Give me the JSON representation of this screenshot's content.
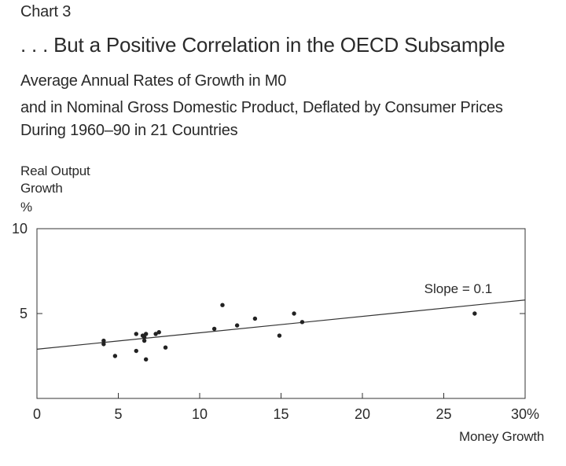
{
  "header": {
    "chart_label": "Chart 3",
    "title": ". . . But a Positive Correlation in the OECD Subsample",
    "subtitle_lines": [
      "Average Annual Rates of Growth in M0",
      "and in Nominal Gross Domestic Product, Deflated by Consumer Prices",
      "During 1960–90 in 21 Countries"
    ]
  },
  "chart_data": {
    "type": "scatter",
    "title": ". . . But a Positive Correlation in the OECD Subsample",
    "ylabel_lines": [
      "Real Output",
      "Growth",
      "%"
    ],
    "xlabel": "Money Growth",
    "xlim": [
      0,
      30
    ],
    "ylim": [
      0,
      10
    ],
    "x_ticks": [
      0,
      5,
      10,
      15,
      20,
      25,
      30
    ],
    "x_tick_labels": [
      "0",
      "5",
      "10",
      "15",
      "20",
      "25",
      "30%"
    ],
    "y_ticks": [
      5,
      10
    ],
    "y_tick_labels": [
      "5",
      "10"
    ],
    "grid": false,
    "points": [
      {
        "x": 4.1,
        "y": 3.2
      },
      {
        "x": 4.1,
        "y": 3.4
      },
      {
        "x": 4.8,
        "y": 2.5
      },
      {
        "x": 6.1,
        "y": 3.8
      },
      {
        "x": 6.1,
        "y": 2.8
      },
      {
        "x": 6.5,
        "y": 3.7
      },
      {
        "x": 6.6,
        "y": 3.6
      },
      {
        "x": 6.6,
        "y": 3.4
      },
      {
        "x": 6.7,
        "y": 3.8
      },
      {
        "x": 6.7,
        "y": 2.3
      },
      {
        "x": 7.3,
        "y": 3.8
      },
      {
        "x": 7.5,
        "y": 3.9
      },
      {
        "x": 7.9,
        "y": 3.0
      },
      {
        "x": 10.9,
        "y": 4.1
      },
      {
        "x": 11.4,
        "y": 5.5
      },
      {
        "x": 12.3,
        "y": 4.3
      },
      {
        "x": 13.4,
        "y": 4.7
      },
      {
        "x": 14.9,
        "y": 3.7
      },
      {
        "x": 15.8,
        "y": 5.0
      },
      {
        "x": 16.3,
        "y": 4.5
      },
      {
        "x": 26.9,
        "y": 5.0
      }
    ],
    "fit_line": {
      "x": [
        0,
        30
      ],
      "y": [
        2.9,
        5.8
      ]
    },
    "annotations": [
      {
        "text": "Slope = 0.1",
        "x": 23.8,
        "y": 6.2
      }
    ]
  }
}
